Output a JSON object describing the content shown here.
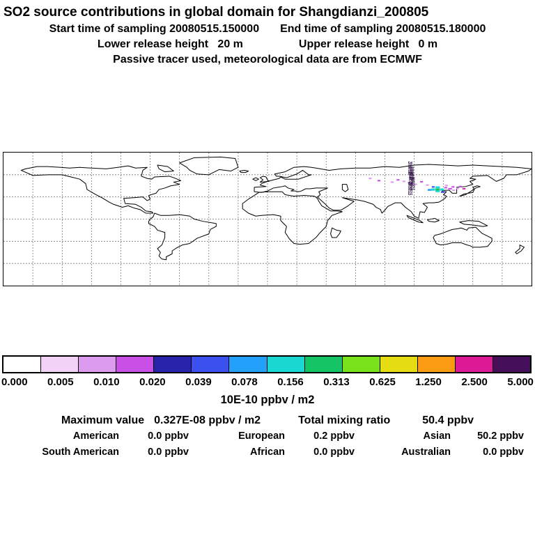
{
  "header": {
    "title": "SO2 source contributions in global domain for Shangdianzi_200805",
    "start_time": "Start time of sampling 20080515.150000",
    "end_time": "End time of sampling 20080515.180000",
    "lower_release": "Lower release height   20 m",
    "upper_release": "Upper release height   0 m",
    "tracer_info": "Passive tracer used, meteorological data are from ECMWF"
  },
  "map": {
    "grid_lon_step_deg": 20,
    "grid_lat_step_deg": 30,
    "stamps": {
      "text": "20080515",
      "positions": [
        {
          "lon": 96,
          "lat": 78
        },
        {
          "lon": 97,
          "lat": 71
        },
        {
          "lon": 96.5,
          "lat": 64
        },
        {
          "lon": 97.5,
          "lat": 57
        },
        {
          "lon": 96,
          "lat": 50
        }
      ]
    },
    "cells": [
      {
        "lon": 116,
        "lat": 40,
        "w": 3,
        "h": 3,
        "color": "#14c364"
      },
      {
        "lon": 113,
        "lat": 40,
        "w": 2.5,
        "h": 3,
        "color": "#19d7d2"
      },
      {
        "lon": 116,
        "lat": 43,
        "w": 3,
        "h": 2.5,
        "color": "#19d7d2"
      },
      {
        "lon": 116,
        "lat": 37.5,
        "w": 3,
        "h": 2,
        "color": "#19d7d2"
      },
      {
        "lon": 119,
        "lat": 40,
        "w": 2.5,
        "h": 3,
        "color": "#19d7d2"
      },
      {
        "lon": 110.5,
        "lat": 39.5,
        "w": 2.5,
        "h": 2.5,
        "color": "#23a0fa"
      },
      {
        "lon": 119.5,
        "lat": 36.5,
        "w": 2.5,
        "h": 2,
        "color": "#3c50f0"
      },
      {
        "lon": 113,
        "lat": 43.5,
        "w": 2,
        "h": 2,
        "color": "#3c50f0"
      },
      {
        "lon": 121.5,
        "lat": 42.5,
        "w": 2,
        "h": 2,
        "color": "#c850e6"
      },
      {
        "lon": 124.5,
        "lat": 41,
        "w": 2.5,
        "h": 2,
        "color": "#c850e6"
      },
      {
        "lon": 127,
        "lat": 39,
        "w": 2,
        "h": 2,
        "color": "#dc9bef"
      },
      {
        "lon": 126.5,
        "lat": 43.5,
        "w": 2,
        "h": 2,
        "color": "#c850e6"
      },
      {
        "lon": 129.5,
        "lat": 41.5,
        "w": 2,
        "h": 2,
        "color": "#dc9bef"
      },
      {
        "lon": 131.5,
        "lat": 44,
        "w": 2,
        "h": 2,
        "color": "#c850e6"
      },
      {
        "lon": 122,
        "lat": 45.5,
        "w": 2,
        "h": 2,
        "color": "#dc9bef"
      },
      {
        "lon": 134,
        "lat": 41,
        "w": 2,
        "h": 1.8,
        "color": "#dc1996"
      },
      {
        "lon": 97,
        "lat": 49,
        "w": 2.5,
        "h": 2,
        "color": "#c850e6"
      },
      {
        "lon": 93,
        "lat": 51,
        "w": 2,
        "h": 2,
        "color": "#dc9bef"
      },
      {
        "lon": 89,
        "lat": 53,
        "w": 2,
        "h": 2,
        "color": "#c850e6"
      },
      {
        "lon": 101,
        "lat": 47,
        "w": 2,
        "h": 2,
        "color": "#dc9bef"
      },
      {
        "lon": 85,
        "lat": 50,
        "w": 2,
        "h": 2,
        "color": "#dc9bef"
      },
      {
        "lon": 105,
        "lat": 50.5,
        "w": 2,
        "h": 2,
        "color": "#c850e6"
      },
      {
        "lon": 109,
        "lat": 46,
        "w": 2,
        "h": 2,
        "color": "#dc9bef"
      },
      {
        "lon": 70,
        "lat": 55,
        "w": 2,
        "h": 2,
        "color": "#dc9bef"
      },
      {
        "lon": 76,
        "lat": 52,
        "w": 2,
        "h": 2,
        "color": "#c850e6"
      }
    ]
  },
  "colorbar": {
    "colors": [
      "#ffffff",
      "#f2d2f7",
      "#dc9bef",
      "#c850e6",
      "#2823aa",
      "#3c50f0",
      "#23a0fa",
      "#19d7d2",
      "#14c364",
      "#78e119",
      "#e6dc14",
      "#fa9b14",
      "#dc1996",
      "#460f5a"
    ],
    "tick_labels": [
      "0.000",
      "0.005",
      "0.010",
      "0.020",
      "0.039",
      "0.078",
      "0.156",
      "0.313",
      "0.625",
      "1.250",
      "2.500",
      "5.000"
    ],
    "units": "10E-10 ppbv / m2"
  },
  "stats": {
    "max_label": "Maximum value",
    "max_value": "0.327E-08 ppbv / m2",
    "total_label": "Total mixing ratio",
    "total_value": "50.4 ppbv",
    "regions": [
      {
        "label": "American",
        "value": "0.0 ppbv"
      },
      {
        "label": "European",
        "value": "0.2 ppbv"
      },
      {
        "label": "Asian",
        "value": "50.2 ppbv"
      },
      {
        "label": "South American",
        "value": "0.0 ppbv"
      },
      {
        "label": "African",
        "value": "0.0 ppbv"
      },
      {
        "label": "Australian",
        "value": "0.0 ppbv"
      }
    ]
  },
  "chart_data": {
    "type": "heatmap",
    "title": "SO2 source contributions in global domain for Shangdianzi_200805",
    "subtitle": [
      "Start time of sampling 20080515.150000",
      "End time of sampling 20080515.180000",
      "Lower release height 20 m",
      "Upper release height 0 m",
      "Passive tracer used, meteorological data are from ECMWF"
    ],
    "projection": "equirectangular world map, lon -180..180, lat -90..90, dashed graticule",
    "colorbar_tick_values": [
      0.0,
      0.005,
      0.01,
      0.02,
      0.039,
      0.078,
      0.156,
      0.313,
      0.625,
      1.25,
      2.5,
      5.0
    ],
    "colorbar_units": "10E-10 ppbv / m2",
    "maximum_value": "0.327E-08 ppbv / m2",
    "total_mixing_ratio_ppbv": 50.4,
    "series": [
      {
        "name": "American",
        "values": [
          0.0
        ]
      },
      {
        "name": "European",
        "values": [
          0.2
        ]
      },
      {
        "name": "Asian",
        "values": [
          50.2
        ]
      },
      {
        "name": "South American",
        "values": [
          0.0
        ]
      },
      {
        "name": "African",
        "values": [
          0.0
        ]
      },
      {
        "name": "Australian",
        "values": [
          0.0
        ]
      }
    ],
    "hotspot": "strong source region near Shangdianzi/Beijing (~40N, 116E) with weaker scattered cells over NE Asia and southern Siberia"
  }
}
